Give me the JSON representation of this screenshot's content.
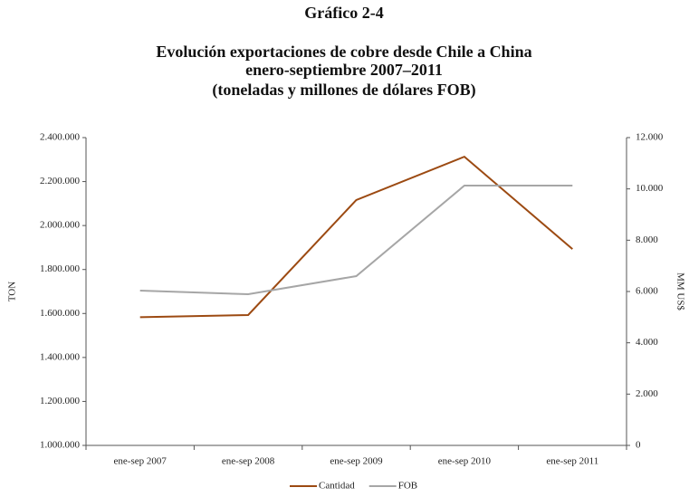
{
  "chart_data": {
    "type": "line",
    "title": "Gráfico 2-4",
    "subtitle": [
      "Evolución exportaciones de cobre desde Chile a China",
      "enero-septiembre 2007–2011",
      "(toneladas y millones de dólares FOB)"
    ],
    "categories": [
      "ene-sep 2007",
      "ene-sep 2008",
      "ene-sep 2009",
      "ene-sep 2010",
      "ene-sep 2011"
    ],
    "series": [
      {
        "name": "Cantidad",
        "color": "#9c4a12",
        "values": [
          1583000,
          1593000,
          2116000,
          2313000,
          1893000
        ]
      },
      {
        "name": "FOB",
        "color": "#a6a6a6",
        "axis": "y2",
        "values": [
          6035,
          5894,
          6600,
          10129,
          10129
        ]
      }
    ],
    "ylabel": "TON",
    "y2label": "MM US$",
    "ylim": [
      1000000,
      2400000
    ],
    "yticks": [
      {
        "value": 1000000,
        "label": "1.000.000"
      },
      {
        "value": 1200000,
        "label": "1.200.000"
      },
      {
        "value": 1400000,
        "label": "1.400.000"
      },
      {
        "value": 1600000,
        "label": "1.600.000"
      },
      {
        "value": 1800000,
        "label": "1.800.000"
      },
      {
        "value": 2000000,
        "label": "2.000.000"
      },
      {
        "value": 2200000,
        "label": "2.200.000"
      },
      {
        "value": 2400000,
        "label": "2.400.000"
      }
    ],
    "y2lim": [
      0,
      12000
    ],
    "y2ticks": [
      0,
      {
        "value": 2000,
        "label": "2.000"
      },
      {
        "value": 4000,
        "label": "4.000"
      },
      {
        "value": 6000,
        "label": "6.000"
      },
      {
        "value": 8000,
        "label": "8.000"
      },
      {
        "value": 10000,
        "label": "10.000"
      },
      {
        "value": 12000,
        "label": "12.000"
      }
    ],
    "legend": "bottom"
  }
}
